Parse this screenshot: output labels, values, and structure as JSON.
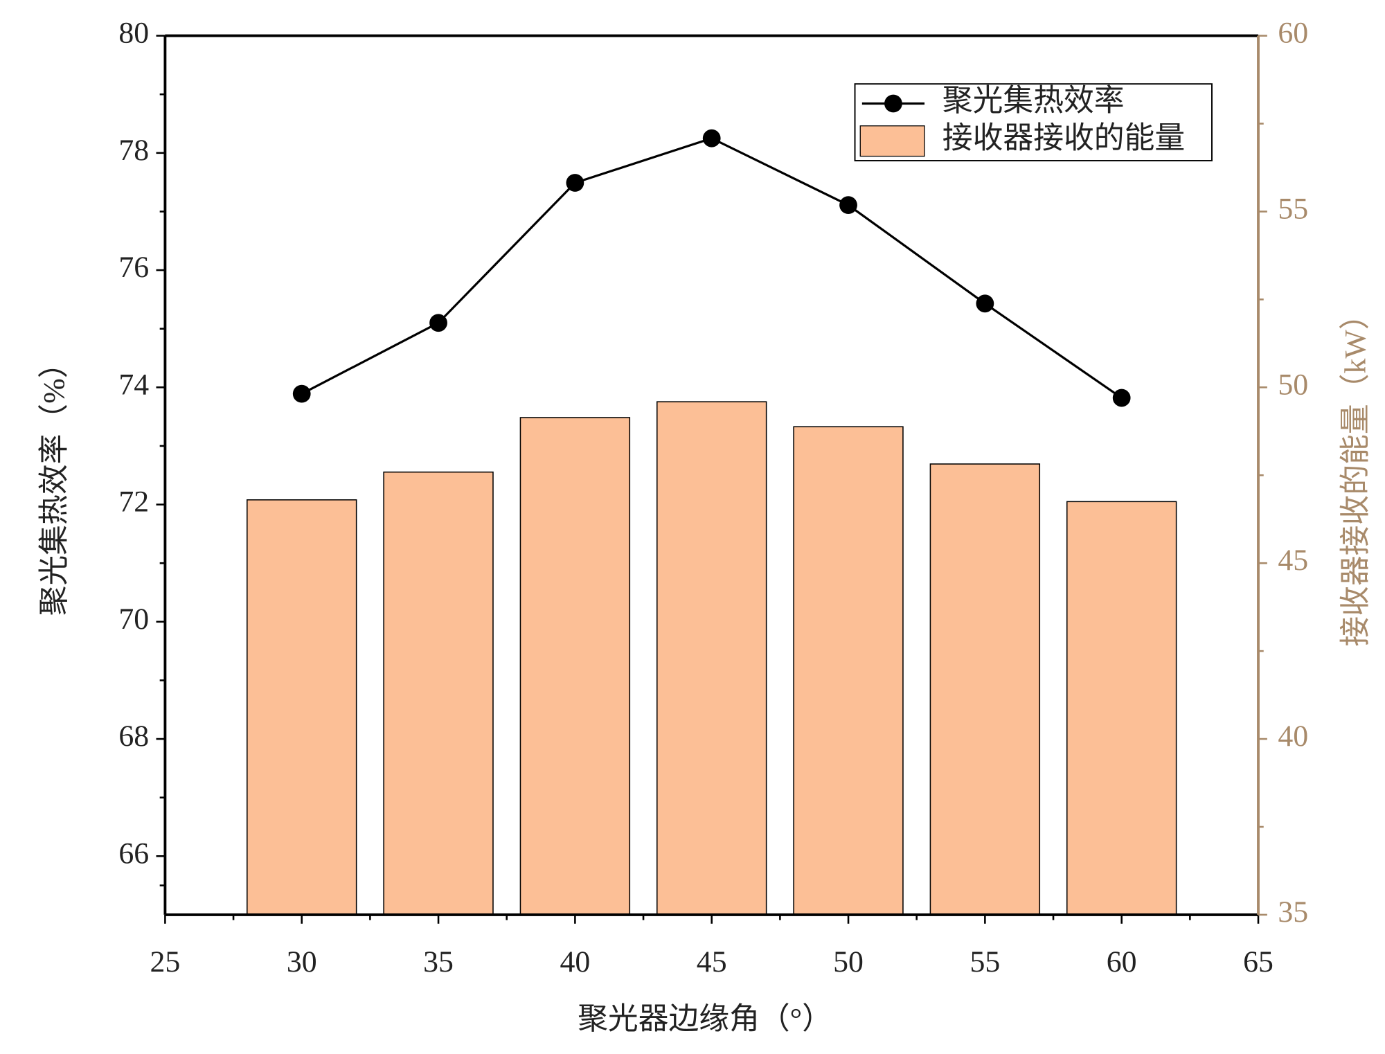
{
  "chart_data": {
    "type": "combo",
    "x_label": "聚光器边缘角（°）",
    "y_label": "聚光集热效率（%）",
    "y2_label": "接收器接收的能量（kW）",
    "x": [
      30,
      35,
      40,
      45,
      50,
      55,
      60
    ],
    "series": [
      {
        "name": "聚光集热效率",
        "type": "line",
        "color": "#000000",
        "values": [
          73.89,
          75.1,
          77.49,
          78.25,
          77.11,
          75.43,
          73.82
        ]
      },
      {
        "name": "接收器接收的能量",
        "type": "bar",
        "axis": "y2",
        "color": "#fcbf96",
        "values": [
          46.8,
          47.59,
          49.14,
          49.59,
          48.88,
          47.82,
          46.75
        ]
      }
    ],
    "xlim": [
      25,
      65
    ],
    "xticks": [
      25,
      30,
      35,
      40,
      45,
      50,
      55,
      60,
      65
    ],
    "ylim": [
      65,
      80
    ],
    "yticks": [
      66,
      68,
      70,
      72,
      74,
      76,
      78,
      80
    ],
    "y2lim": [
      35,
      60
    ],
    "y2ticks": [
      35,
      40,
      45,
      50,
      55,
      60
    ],
    "y2_color": "#a88a6a",
    "bar_width": 4,
    "legend": "upper right"
  }
}
